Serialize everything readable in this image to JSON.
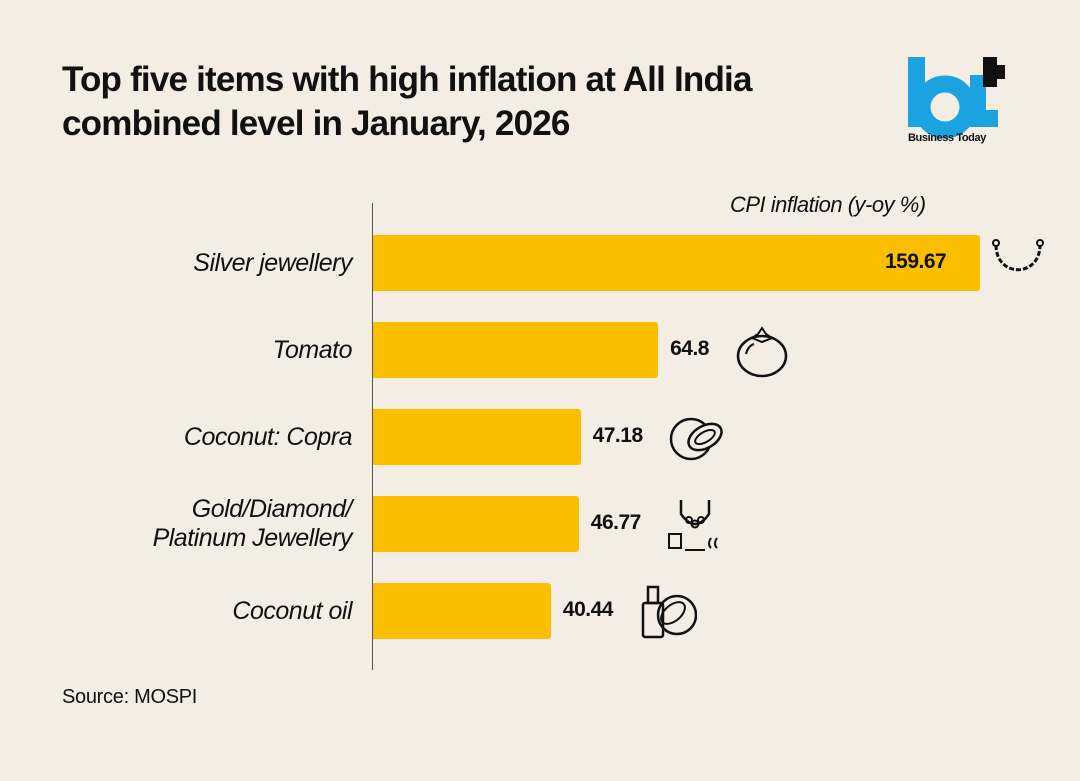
{
  "chart_data": {
    "type": "bar",
    "orientation": "horizontal",
    "title": "Top five items with high inflation at All India combined level in January, 2026",
    "xlabel": "CPI inflation (y-oy %)",
    "categories": [
      "Silver jewellery",
      "Tomato",
      "Coconut: Copra",
      "Gold/Diamond/ Platinum Jewellery",
      "Coconut oil"
    ],
    "values": [
      159.67,
      64.8,
      47.18,
      46.77,
      40.44
    ],
    "value_labels": [
      "159.67",
      "64.8",
      "47.18",
      "46.77",
      "40.44"
    ],
    "icons": [
      "chain-necklace-icon",
      "tomato-icon",
      "coconut-icon",
      "jewellery-icon",
      "coconut-oil-icon"
    ],
    "bar_color": "#fbbf00",
    "grid": false
  },
  "brand": {
    "name": "Business Today",
    "accent": "#1aa3e0"
  },
  "source": "Source: MOSPI"
}
